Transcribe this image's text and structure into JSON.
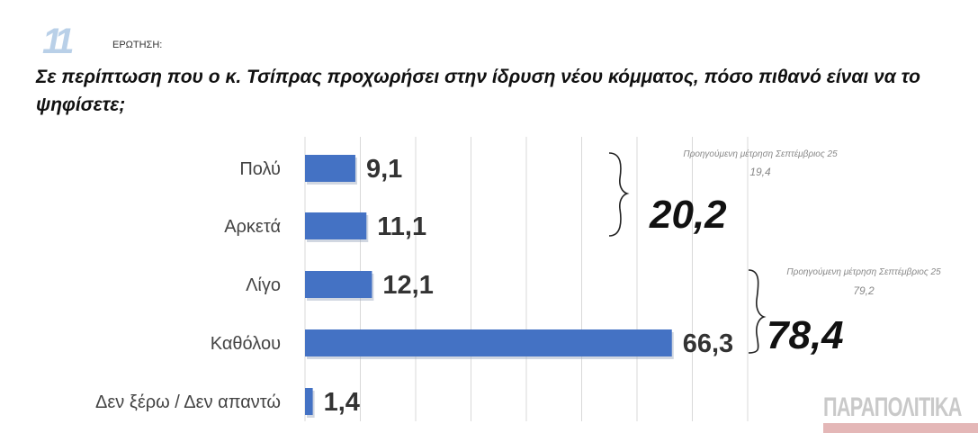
{
  "header": {
    "question_number": "11",
    "question_label": "ΕΡΩΤΗΣΗ:",
    "question_text": "Σε περίπτωση που ο κ. Τσίπρας προχωρήσει στην ίδρυση νέου κόμματος, πόσο πιθανό είναι να το ψηφίσετε;"
  },
  "chart_data": {
    "type": "bar",
    "orientation": "horizontal",
    "categories": [
      "Πολύ",
      "Αρκετά",
      "Λίγο",
      "Καθόλου",
      "Δεν ξέρω / Δεν απαντώ"
    ],
    "values": [
      9.1,
      11.1,
      12.1,
      66.3,
      1.4
    ],
    "value_labels": [
      "9,1",
      "11,1",
      "12,1",
      "66,3",
      "1,4"
    ],
    "xlim": [
      0,
      80
    ],
    "grid": true,
    "bar_color": "#4472c4",
    "annotations": [
      {
        "group": [
          "Πολύ",
          "Αρκετά"
        ],
        "total": "20,2",
        "previous_label": "Προηγούμενη μέτρηση Σεπτέμβριος 25",
        "previous_value": "19,4"
      },
      {
        "group": [
          "Λίγο",
          "Καθόλου"
        ],
        "total": "78,4",
        "previous_label": "Προηγούμενη μέτρηση Σεπτέμβριος 25",
        "previous_value": "79,2"
      }
    ]
  },
  "footer": {
    "logo_text": "ΠΑΡΑΠΟΛΙΤΙΚΑ"
  }
}
